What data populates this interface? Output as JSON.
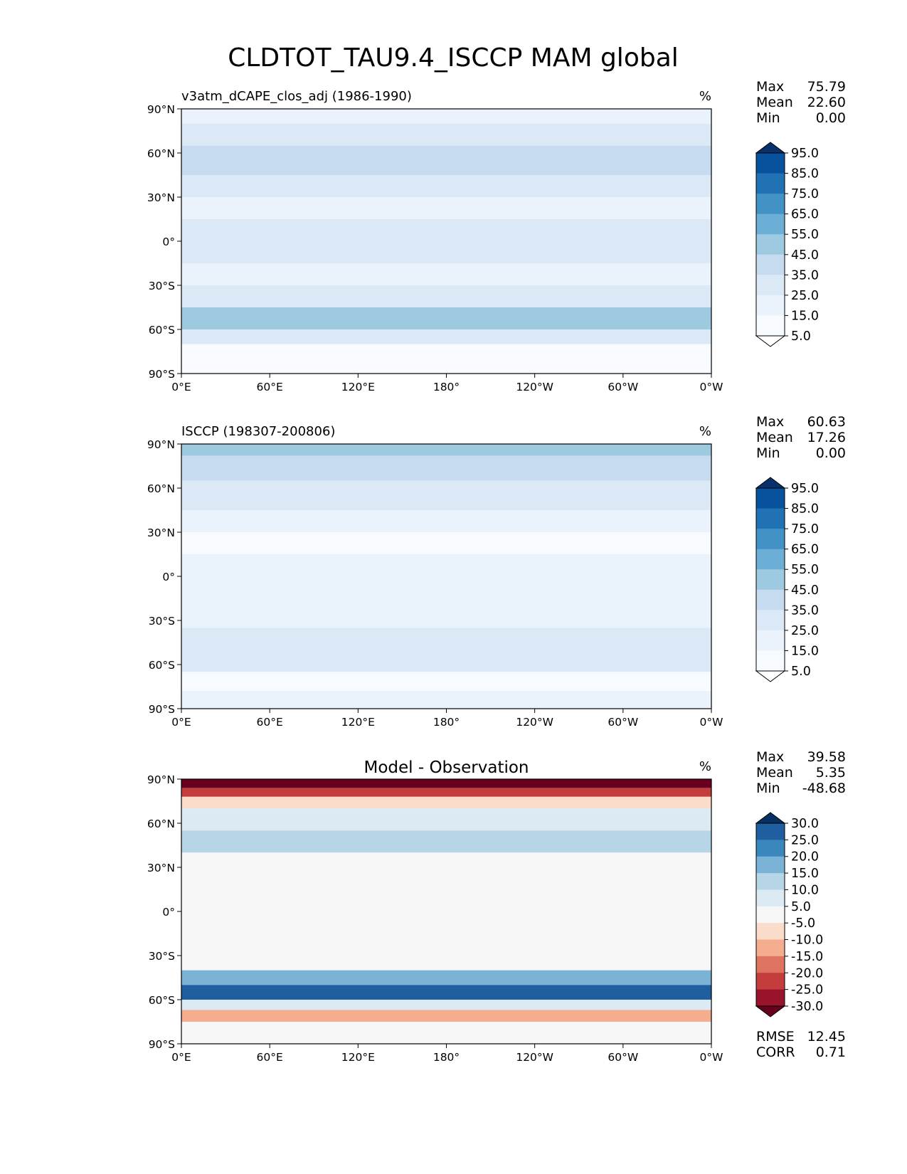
{
  "title": "CLDTOT_TAU9.4_ISCCP MAM global",
  "chart_data": [
    {
      "type": "heatmap",
      "title": "v3atm_dCAPE_clos_adj (1986-1990)",
      "units": "%",
      "stats": [
        {
          "label": "Max",
          "value": "75.79"
        },
        {
          "label": "Mean",
          "value": "22.60"
        },
        {
          "label": "Min",
          "value": "0.00"
        }
      ],
      "xticks": [
        "0°E",
        "60°E",
        "120°E",
        "180°",
        "120°W",
        "60°W",
        "0°W"
      ],
      "yticks": [
        "90°N",
        "60°N",
        "30°N",
        "0°",
        "30°S",
        "60°S",
        "90°S"
      ],
      "xlim": [
        0,
        360
      ],
      "ylim": [
        -90,
        90
      ],
      "colorbar_levels": [
        "95.0",
        "85.0",
        "75.0",
        "65.0",
        "55.0",
        "45.0",
        "35.0",
        "25.0",
        "15.0",
        "5.0"
      ],
      "colorbar_colors": [
        "#08306b",
        "#08519c",
        "#2171b5",
        "#4292c6",
        "#6baed6",
        "#9ecae1",
        "#c6dbef",
        "#dbe9f6",
        "#eaf2fb",
        "#f7fbff",
        "#ffffff"
      ],
      "bands": [
        {
          "lat": [
            90,
            80
          ],
          "value": 20
        },
        {
          "lat": [
            80,
            65
          ],
          "value": 30
        },
        {
          "lat": [
            65,
            45
          ],
          "value": 40
        },
        {
          "lat": [
            45,
            30
          ],
          "value": 30
        },
        {
          "lat": [
            30,
            15
          ],
          "value": 15
        },
        {
          "lat": [
            15,
            -15
          ],
          "value": 25
        },
        {
          "lat": [
            -15,
            -30
          ],
          "value": 15
        },
        {
          "lat": [
            -30,
            -45
          ],
          "value": 30
        },
        {
          "lat": [
            -45,
            -60
          ],
          "value": 50
        },
        {
          "lat": [
            -60,
            -70
          ],
          "value": 25
        },
        {
          "lat": [
            -70,
            -90
          ],
          "value": 5
        }
      ]
    },
    {
      "type": "heatmap",
      "title": "ISCCP (198307-200806)",
      "units": "%",
      "stats": [
        {
          "label": "Max",
          "value": "60.63"
        },
        {
          "label": "Mean",
          "value": "17.26"
        },
        {
          "label": "Min",
          "value": "0.00"
        }
      ],
      "xticks": [
        "0°E",
        "60°E",
        "120°E",
        "180°",
        "120°W",
        "60°W",
        "0°W"
      ],
      "yticks": [
        "90°N",
        "60°N",
        "30°N",
        "0°",
        "30°S",
        "60°S",
        "90°S"
      ],
      "xlim": [
        0,
        360
      ],
      "ylim": [
        -90,
        90
      ],
      "colorbar_levels": [
        "95.0",
        "85.0",
        "75.0",
        "65.0",
        "55.0",
        "45.0",
        "35.0",
        "25.0",
        "15.0",
        "5.0"
      ],
      "colorbar_colors": [
        "#08306b",
        "#08519c",
        "#2171b5",
        "#4292c6",
        "#6baed6",
        "#9ecae1",
        "#c6dbef",
        "#dbe9f6",
        "#eaf2fb",
        "#f7fbff",
        "#ffffff"
      ],
      "bands": [
        {
          "lat": [
            90,
            82
          ],
          "value": 45
        },
        {
          "lat": [
            82,
            65
          ],
          "value": 35
        },
        {
          "lat": [
            65,
            45
          ],
          "value": 30
        },
        {
          "lat": [
            45,
            30
          ],
          "value": 22
        },
        {
          "lat": [
            30,
            15
          ],
          "value": 12
        },
        {
          "lat": [
            15,
            -15
          ],
          "value": 18
        },
        {
          "lat": [
            -15,
            -35
          ],
          "value": 15
        },
        {
          "lat": [
            -35,
            -50
          ],
          "value": 25
        },
        {
          "lat": [
            -50,
            -65
          ],
          "value": 30
        },
        {
          "lat": [
            -65,
            -78
          ],
          "value": 12
        },
        {
          "lat": [
            -78,
            -90
          ],
          "value": 20
        }
      ]
    },
    {
      "type": "heatmap",
      "title": "Model - Observation",
      "units": "%",
      "stats": [
        {
          "label": "Max",
          "value": "39.58"
        },
        {
          "label": "Mean",
          "value": "5.35"
        },
        {
          "label": "Min",
          "value": "-48.68"
        }
      ],
      "footer_stats": [
        {
          "label": "RMSE",
          "value": "12.45"
        },
        {
          "label": "CORR",
          "value": "0.71"
        }
      ],
      "xticks": [
        "0°E",
        "60°E",
        "120°E",
        "180°",
        "120°W",
        "60°W",
        "0°W"
      ],
      "yticks": [
        "90°N",
        "60°N",
        "30°N",
        "0°",
        "30°S",
        "60°S",
        "90°S"
      ],
      "xlim": [
        0,
        360
      ],
      "ylim": [
        -90,
        90
      ],
      "colorbar_levels": [
        "30.0",
        "25.0",
        "20.0",
        "15.0",
        "10.0",
        "5.0",
        "-5.0",
        "-10.0",
        "-15.0",
        "-20.0",
        "-25.0",
        "-30.0"
      ],
      "colorbar_colors": [
        "#053061",
        "#1f5e9f",
        "#3a87bd",
        "#7ab3d5",
        "#b6d6e8",
        "#dcebf3",
        "#f7f7f7",
        "#fbdbc9",
        "#f4ad8f",
        "#de7360",
        "#c43c3c",
        "#98142b",
        "#67001f"
      ],
      "bands": [
        {
          "lat": [
            90,
            84
          ],
          "value": -35
        },
        {
          "lat": [
            84,
            78
          ],
          "value": -22
        },
        {
          "lat": [
            78,
            70
          ],
          "value": -8
        },
        {
          "lat": [
            70,
            55
          ],
          "value": 6
        },
        {
          "lat": [
            55,
            40
          ],
          "value": 12
        },
        {
          "lat": [
            40,
            20
          ],
          "value": 2
        },
        {
          "lat": [
            20,
            -20
          ],
          "value": 3
        },
        {
          "lat": [
            -20,
            -40
          ],
          "value": 2
        },
        {
          "lat": [
            -40,
            -50
          ],
          "value": 18
        },
        {
          "lat": [
            -50,
            -60
          ],
          "value": 28
        },
        {
          "lat": [
            -60,
            -67
          ],
          "value": 7
        },
        {
          "lat": [
            -67,
            -75
          ],
          "value": -12
        },
        {
          "lat": [
            -75,
            -90
          ],
          "value": 0
        }
      ]
    }
  ]
}
